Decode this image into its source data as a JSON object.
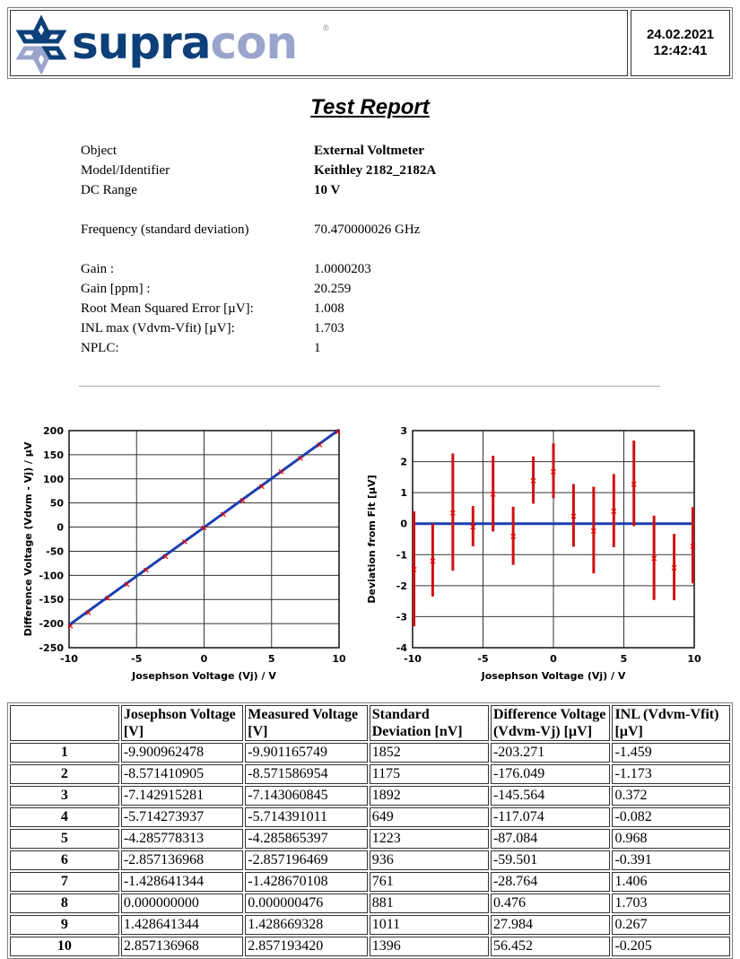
{
  "header": {
    "logo_text_primary": "supra",
    "logo_text_secondary": "con",
    "logo_reg": "®",
    "date": "24.02.2021",
    "time": "12:42:41"
  },
  "title": "Test Report",
  "info": [
    {
      "label": "Object",
      "value": "External Voltmeter",
      "bold": true
    },
    {
      "label": "Model/Identifier",
      "value": "Keithley 2182_2182A",
      "bold": true
    },
    {
      "label": "DC Range",
      "value": "10 V",
      "bold": true
    },
    {
      "label": "",
      "value": ""
    },
    {
      "label": "Frequency (standard deviation)",
      "value": "70.470000026 GHz"
    },
    {
      "label": "",
      "value": ""
    },
    {
      "label": "Gain :",
      "value": "1.0000203"
    },
    {
      "label": "Gain [ppm] :",
      "value": "20.259"
    },
    {
      "label": "Root Mean Squared Error [µV]:",
      "value": "1.008"
    },
    {
      "label": "INL max (Vdvm-Vfit) [µV]:",
      "value": "1.703"
    },
    {
      "label": "NPLC:",
      "value": "1"
    }
  ],
  "colors": {
    "fit_line": "#1a3fb0",
    "points": "#e00000",
    "error_bars": "#d01010",
    "logo_dark": "#0d3f78",
    "logo_light": "#9aa4cc"
  },
  "chart_data": [
    {
      "type": "line",
      "title": "",
      "xlabel": "Josephson Voltage (Vj) / V",
      "ylabel": "Difference Voltage (Vdvm - Vj) / µV",
      "xlim": [
        -10,
        10
      ],
      "ylim": [
        -250,
        200
      ],
      "xticks": [
        -10,
        -5,
        0,
        5,
        10
      ],
      "yticks": [
        -250,
        -200,
        -150,
        -100,
        -50,
        0,
        50,
        100,
        150,
        200
      ],
      "grid": true,
      "x": [
        -9.901,
        -8.571,
        -7.143,
        -5.714,
        -4.286,
        -2.857,
        -1.429,
        0,
        1.429,
        2.857,
        4.286,
        5.714,
        7.143,
        8.571,
        9.901
      ],
      "series": [
        {
          "name": "measured",
          "values": [
            -203.271,
            -176.049,
            -145.564,
            -117.074,
            -87.084,
            -59.501,
            -28.764,
            0.476,
            27.984,
            56.452,
            86.0,
            116.0,
            144.0,
            172.0,
            199.0
          ]
        },
        {
          "name": "fit",
          "line": [
            [
              -10,
              -203
            ],
            [
              10,
              202
            ]
          ]
        }
      ]
    },
    {
      "type": "scatter",
      "title": "",
      "xlabel": "Josephson Voltage (Vj) / V",
      "ylabel": "Deviation from Fit [µV]",
      "xlim": [
        -10,
        10
      ],
      "ylim": [
        -4,
        3
      ],
      "xticks": [
        -10,
        -5,
        0,
        5,
        10
      ],
      "yticks": [
        -4,
        -3,
        -2,
        -1,
        0,
        1,
        2,
        3
      ],
      "grid": true,
      "x": [
        -9.901,
        -8.571,
        -7.143,
        -5.714,
        -4.286,
        -2.857,
        -1.429,
        0,
        1.429,
        2.857,
        4.286,
        5.714,
        7.143,
        8.571,
        9.901
      ],
      "values": [
        -1.459,
        -1.173,
        0.372,
        -0.082,
        0.968,
        -0.391,
        1.406,
        1.703,
        0.267,
        -0.205,
        0.42,
        1.3,
        -1.1,
        -1.4,
        -0.7
      ],
      "errors": [
        1.852,
        1.175,
        1.892,
        0.649,
        1.223,
        0.936,
        0.761,
        0.881,
        1.011,
        1.396,
        1.18,
        1.38,
        1.36,
        1.07,
        1.23
      ],
      "reference_line": 0
    }
  ],
  "table": {
    "headers": [
      "",
      "Josephson Voltage [V]",
      "Measured Voltage [V]",
      "Standard Deviation [nV]",
      "Difference Voltage (Vdvm-Vj) [µV]",
      "INL (Vdvm-Vfit) [µV]"
    ],
    "rows": [
      [
        "1",
        "-9.900962478",
        "-9.901165749",
        "1852",
        "-203.271",
        "-1.459"
      ],
      [
        "2",
        "-8.571410905",
        "-8.571586954",
        "1175",
        "-176.049",
        "-1.173"
      ],
      [
        "3",
        "-7.142915281",
        "-7.143060845",
        "1892",
        "-145.564",
        "0.372"
      ],
      [
        "4",
        "-5.714273937",
        "-5.714391011",
        "649",
        "-117.074",
        "-0.082"
      ],
      [
        "5",
        "-4.285778313",
        "-4.285865397",
        "1223",
        "-87.084",
        "0.968"
      ],
      [
        "6",
        "-2.857136968",
        "-2.857196469",
        "936",
        "-59.501",
        "-0.391"
      ],
      [
        "7",
        "-1.428641344",
        "-1.428670108",
        "761",
        "-28.764",
        "1.406"
      ],
      [
        "8",
        "0.000000000",
        "0.000000476",
        "881",
        "0.476",
        "1.703"
      ],
      [
        "9",
        "1.428641344",
        "1.428669328",
        "1011",
        "27.984",
        "0.267"
      ],
      [
        "10",
        "2.857136968",
        "2.857193420",
        "1396",
        "56.452",
        "-0.205"
      ]
    ]
  }
}
